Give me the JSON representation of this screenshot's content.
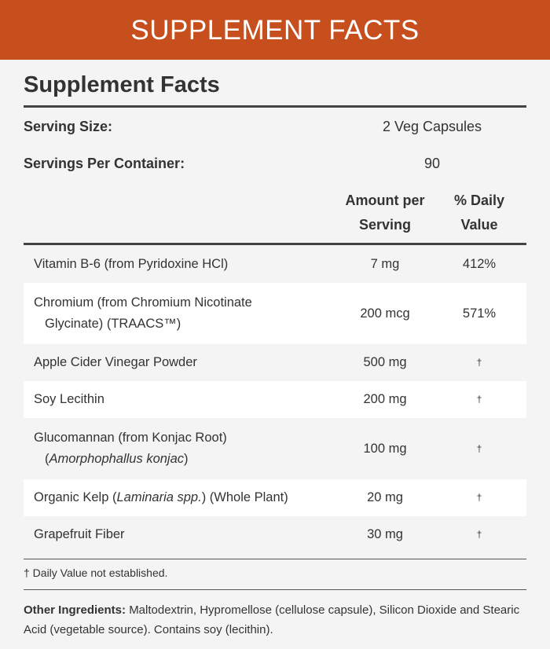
{
  "header": {
    "title": "SUPPLEMENT FACTS"
  },
  "panel": {
    "title": "Supplement Facts",
    "serving_size": {
      "label": "Serving Size:",
      "value": "2 Veg Capsules"
    },
    "servings_per_container": {
      "label": "Servings Per Container:",
      "value": "90"
    },
    "columns": {
      "amount": [
        "Amount per",
        "Serving"
      ],
      "daily": [
        "% Daily",
        "Value"
      ]
    },
    "rows": [
      {
        "name": [
          [
            "Vitamin B-6 (from Pyridoxine HCl)"
          ]
        ],
        "amount": "7 mg",
        "daily": "412%"
      },
      {
        "name": [
          [
            "Chromium (from Chromium Nicotinate"
          ],
          [
            "Glycinate) (TRAACS™)"
          ]
        ],
        "amount": "200 mcg",
        "daily": "571%"
      },
      {
        "name": [
          [
            "Apple Cider Vinegar Powder"
          ]
        ],
        "amount": "500 mg",
        "daily": "†"
      },
      {
        "name": [
          [
            "Soy Lecithin"
          ]
        ],
        "amount": "200 mg",
        "daily": "†"
      },
      {
        "name": [
          [
            "Glucomannan (from Konjac Root)"
          ],
          [
            "(",
            "Amorphophallus konjac",
            ")"
          ]
        ],
        "amount": "100 mg",
        "daily": "†"
      },
      {
        "name": [
          [
            "Organic Kelp (",
            "Laminaria spp.",
            ") (Whole Plant)"
          ]
        ],
        "amount": "20 mg",
        "daily": "†"
      },
      {
        "name": [
          [
            "Grapefruit Fiber"
          ]
        ],
        "amount": "30 mg",
        "daily": "†"
      }
    ],
    "footnote": "† Daily Value not established.",
    "other_ingredients": {
      "label": "Other Ingredients:",
      "text": "Maltodextrin, Hypromellose (cellulose capsule), Silicon Dioxide and Stearic Acid (vegetable source). Contains soy (lecithin)."
    }
  }
}
